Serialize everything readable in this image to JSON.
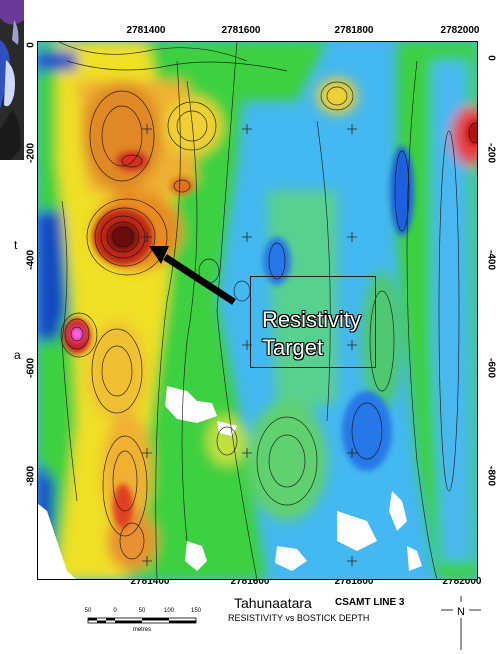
{
  "map": {
    "x_ticks": [
      "2781400",
      "2781600",
      "2781800",
      "2782000"
    ],
    "depth_ticks_left": [
      "0",
      "-200",
      "-400",
      "-600",
      "-800"
    ],
    "depth_ticks_right": [
      "0",
      "-200",
      "-400",
      "-600",
      "-800"
    ],
    "target_label_line1": "Resistivity",
    "target_label_line2": "Target"
  },
  "caption": {
    "title": "Tahunaatara",
    "line": "CSAMT LINE 3",
    "subtitle": "RESISTIVITY vs BOSTICK DEPTH"
  },
  "north_label": "N",
  "scale": {
    "labels": [
      "50",
      "0",
      "50",
      "100",
      "150"
    ],
    "unit": "metres"
  },
  "left_fragment": {
    "letters": [
      "t",
      "a"
    ]
  },
  "colors": {
    "high": "#8b1010",
    "mid_high": "#e88a20",
    "mid": "#f0e020",
    "mid_low": "#40d040",
    "low": "#3a9cf0",
    "lowest": "#1030b0"
  }
}
